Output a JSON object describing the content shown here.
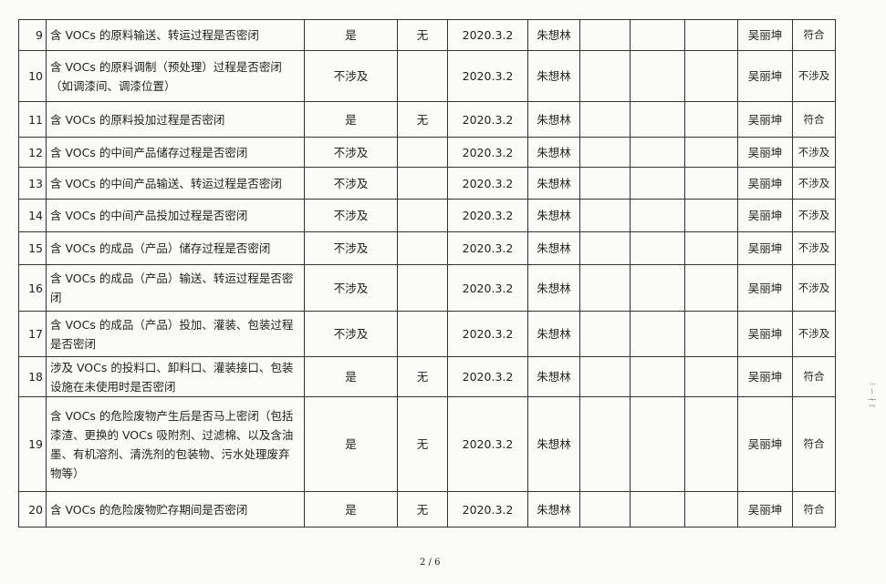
{
  "rows": [
    {
      "no": "9",
      "item": "含 VOCs 的原料输送、转运过程是否密闭",
      "status": "是",
      "issue": "无",
      "date": "2020.3.2",
      "inspector": "朱想林",
      "reviewer": "吴丽坤",
      "result": "符合"
    },
    {
      "no": "10",
      "item": "含 VOCs 的原料调制（预处理）过程是否密闭（如调漆间、调漆位置）",
      "status": "不涉及",
      "issue": "",
      "date": "2020.3.2",
      "inspector": "朱想林",
      "reviewer": "吴丽坤",
      "result": "不涉及"
    },
    {
      "no": "11",
      "item": "含 VOCs 的原料投加过程是否密闭",
      "status": "是",
      "issue": "无",
      "date": "2020.3.2",
      "inspector": "朱想林",
      "reviewer": "吴丽坤",
      "result": "符合"
    },
    {
      "no": "12",
      "item": "含 VOCs 的中间产品储存过程是否密闭",
      "status": "不涉及",
      "issue": "",
      "date": "2020.3.2",
      "inspector": "朱想林",
      "reviewer": "吴丽坤",
      "result": "不涉及"
    },
    {
      "no": "13",
      "item": "含 VOCs 的中间产品输送、转运过程是否密闭",
      "status": "不涉及",
      "issue": "",
      "date": "2020.3.2",
      "inspector": "朱想林",
      "reviewer": "吴丽坤",
      "result": "不涉及"
    },
    {
      "no": "14",
      "item": "含 VOCs 的中间产品投加过程是否密闭",
      "status": "不涉及",
      "issue": "",
      "date": "2020.3.2",
      "inspector": "朱想林",
      "reviewer": "吴丽坤",
      "result": "不涉及"
    },
    {
      "no": "15",
      "item": "含 VOCs 的成品（产品）储存过程是否密闭",
      "status": "不涉及",
      "issue": "",
      "date": "2020.3.2",
      "inspector": "朱想林",
      "reviewer": "吴丽坤",
      "result": "不涉及"
    },
    {
      "no": "16",
      "item": "含 VOCs 的成品（产品）输送、转运过程是否密闭",
      "status": "不涉及",
      "issue": "",
      "date": "2020.3.2",
      "inspector": "朱想林",
      "reviewer": "吴丽坤",
      "result": "不涉及"
    },
    {
      "no": "17",
      "item": "含 VOCs 的成品（产品）投加、灌装、包装过程是否密闭",
      "status": "不涉及",
      "issue": "",
      "date": "2020.3.2",
      "inspector": "朱想林",
      "reviewer": "吴丽坤",
      "result": "不涉及"
    },
    {
      "no": "18",
      "item": "涉及 VOCs 的投料口、卸料口、灌装接口、包装设施在未使用时是否密闭",
      "status": "是",
      "issue": "无",
      "date": "2020.3.2",
      "inspector": "朱想林",
      "reviewer": "吴丽坤",
      "result": "符合"
    },
    {
      "no": "19",
      "item": "含 VOCs 的危险废物产生后是否马上密闭（包括漆渣、更换的 VOCs 吸附剂、过滤棉、以及含油墨、有机溶剂、清洗剂的包装物、污水处理废弃物等）",
      "status": "是",
      "issue": "无",
      "date": "2020.3.2",
      "inspector": "朱想林",
      "reviewer": "吴丽坤",
      "result": "符合"
    },
    {
      "no": "20",
      "item": "含 VOCs 的危险废物贮存期间是否密闭",
      "status": "是",
      "issue": "无",
      "date": "2020.3.2",
      "inspector": "朱想林",
      "reviewer": "吴丽坤",
      "result": "符合"
    }
  ],
  "footer": {
    "page": "2 / 6"
  }
}
